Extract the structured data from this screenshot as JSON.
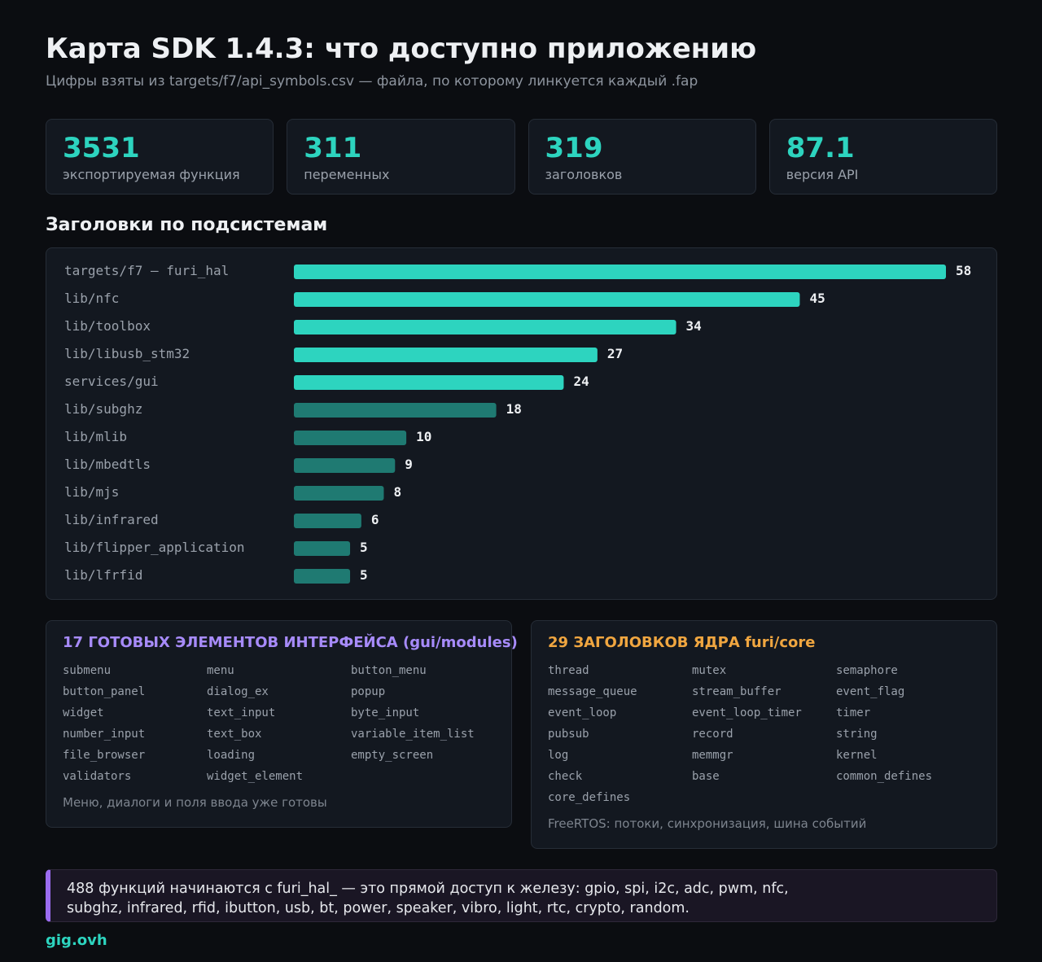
{
  "header": {
    "title": "Карта SDK 1.4.3: что доступно приложению",
    "subtitle": "Цифры взяты из targets/f7/api_symbols.csv — файла, по которому линкуется каждый .fap"
  },
  "stats": [
    {
      "value": "3531",
      "label": "экспортируемая функция"
    },
    {
      "value": "311",
      "label": "переменных"
    },
    {
      "value": "319",
      "label": "заголовков"
    },
    {
      "value": "87.1",
      "label": "версия API"
    }
  ],
  "section_title": "Заголовки по подсистемам",
  "chart_data": {
    "type": "bar",
    "orientation": "horizontal",
    "categories": [
      "targets/f7 — furi_hal",
      "lib/nfc",
      "lib/toolbox",
      "lib/libusb_stm32",
      "services/gui",
      "lib/subghz",
      "lib/mlib",
      "lib/mbedtls",
      "lib/mjs",
      "lib/infrared",
      "lib/flipper_application",
      "lib/lfrfid"
    ],
    "values": [
      58,
      45,
      34,
      27,
      24,
      18,
      10,
      9,
      8,
      6,
      5,
      5
    ],
    "xlim": [
      0,
      58
    ],
    "grid": false,
    "colors": {
      "highlight": "#2dd4bf",
      "muted": "#1f7a72"
    },
    "highlight_count": 5
  },
  "gui_panel": {
    "title": "17 ГОТОВЫХ ЭЛЕМЕНТОВ ИНТЕРФЕЙСА (gui/modules)",
    "items": [
      "submenu",
      "menu",
      "button_menu",
      "button_panel",
      "dialog_ex",
      "popup",
      "widget",
      "text_input",
      "byte_input",
      "number_input",
      "text_box",
      "variable_item_list",
      "file_browser",
      "loading",
      "empty_screen",
      "validators",
      "widget_element"
    ],
    "note": "Меню, диалоги и поля ввода уже готовы"
  },
  "core_panel": {
    "title": "29 ЗАГОЛОВКОВ ЯДРА furi/core",
    "items": [
      "thread",
      "mutex",
      "semaphore",
      "message_queue",
      "stream_buffer",
      "event_flag",
      "event_loop",
      "event_loop_timer",
      "timer",
      "pubsub",
      "record",
      "string",
      "log",
      "memmgr",
      "kernel",
      "check",
      "base",
      "common_defines",
      "core_defines"
    ],
    "note": "FreeRTOS: потоки, синхронизация, шина событий"
  },
  "callout": {
    "line1": "488 функций начинаются с furi_hal_ — это прямой доступ к железу: gpio, spi, i2c, adc, pwm, nfc,",
    "line2": "subghz, infrared, rfid, ibutton, usb, bt, power, speaker, vibro, light, rtc, crypto, random."
  },
  "footer": "gig.ovh"
}
